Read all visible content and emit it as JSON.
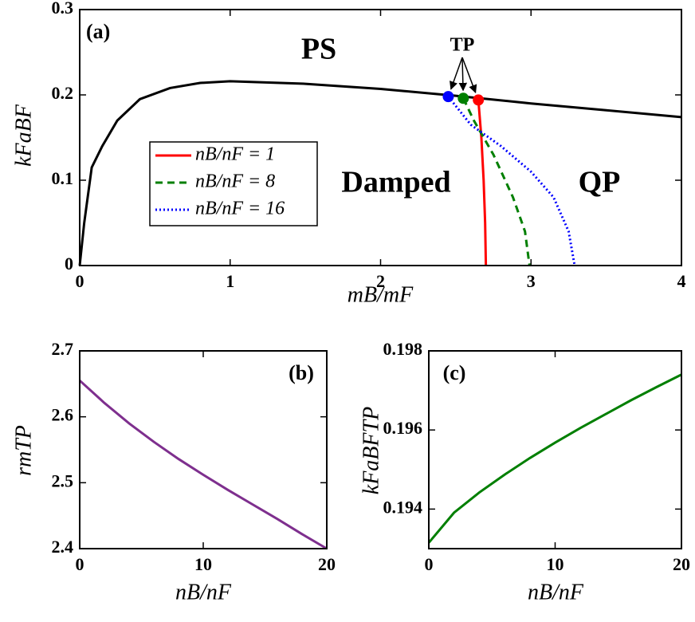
{
  "chart_data": [
    {
      "type": "line",
      "xlabel": "mB/mF",
      "ylabel": "kFaBF",
      "xlim": [
        0,
        4
      ],
      "ylim": [
        0,
        0.3
      ],
      "xticks": [
        0,
        1,
        2,
        3,
        4
      ],
      "yticks": [
        0,
        0.1,
        0.2,
        0.3
      ],
      "annotations": [
        "(a)",
        "PS",
        "Damped",
        "QP",
        "TP"
      ],
      "boundary": {
        "color": "#000000",
        "x": [
          0,
          0.03,
          0.08,
          0.15,
          0.25,
          0.4,
          0.6,
          0.8,
          1.0,
          1.5,
          2.0,
          2.5,
          3.0,
          3.5,
          4.0
        ],
        "values": [
          0,
          0.05,
          0.115,
          0.14,
          0.17,
          0.195,
          0.208,
          0.214,
          0.216,
          0.213,
          0.207,
          0.199,
          0.19,
          0.182,
          0.174
        ]
      },
      "series": [
        {
          "name": "nB/nF = 1",
          "color": "#ff0000",
          "linestyle": "solid",
          "x": [
            2.65,
            2.67,
            2.685,
            2.695,
            2.7
          ],
          "values": [
            0.194,
            0.15,
            0.1,
            0.05,
            0
          ]
        },
        {
          "name": "nB/nF = 8",
          "color": "#007f00",
          "linestyle": "dashed",
          "x": [
            2.55,
            2.62,
            2.75,
            2.88,
            2.96,
            2.99
          ],
          "values": [
            0.196,
            0.17,
            0.13,
            0.08,
            0.04,
            0
          ]
        },
        {
          "name": "nB/nF = 16",
          "color": "#0000ff",
          "linestyle": "dotted",
          "x": [
            2.45,
            2.6,
            2.8,
            3.0,
            3.15,
            3.25,
            3.29
          ],
          "values": [
            0.198,
            0.165,
            0.14,
            0.11,
            0.08,
            0.04,
            0
          ]
        }
      ],
      "markers": {
        "x": [
          2.45,
          2.55,
          2.65
        ],
        "values": [
          0.198,
          0.196,
          0.194
        ],
        "colors": [
          "#0000ff",
          "#007f00",
          "#ff0000"
        ]
      }
    },
    {
      "type": "line",
      "xlabel": "nB/nF",
      "ylabel": "rmTP",
      "annotations": [
        "(b)"
      ],
      "xlim": [
        0,
        20
      ],
      "ylim": [
        2.4,
        2.7
      ],
      "xticks": [
        0,
        10,
        20
      ],
      "yticks": [
        2.4,
        2.5,
        2.6,
        2.7
      ],
      "x": [
        0,
        2,
        4,
        6,
        8,
        10,
        12,
        14,
        16,
        18,
        20
      ],
      "series": [
        {
          "color": "#7e2f8e",
          "linestyle": "solid",
          "values": [
            2.655,
            2.621,
            2.59,
            2.562,
            2.536,
            2.512,
            2.489,
            2.467,
            2.445,
            2.422,
            2.4
          ]
        }
      ]
    },
    {
      "type": "line",
      "xlabel": "nB/nF",
      "ylabel": "kFaBFTP",
      "annotations": [
        "(c)"
      ],
      "xlim": [
        0,
        20
      ],
      "ylim": [
        0.193,
        0.198
      ],
      "xticks": [
        0,
        10,
        20
      ],
      "yticks": [
        0.194,
        0.196,
        0.198
      ],
      "x": [
        0,
        2,
        4,
        6,
        8,
        10,
        12,
        14,
        16,
        18,
        20
      ],
      "series": [
        {
          "color": "#007f00",
          "linestyle": "solid",
          "values": [
            0.19315,
            0.19391,
            0.19442,
            0.19487,
            0.19529,
            0.19568,
            0.19605,
            0.1964,
            0.19675,
            0.19708,
            0.1974
          ]
        }
      ]
    }
  ]
}
